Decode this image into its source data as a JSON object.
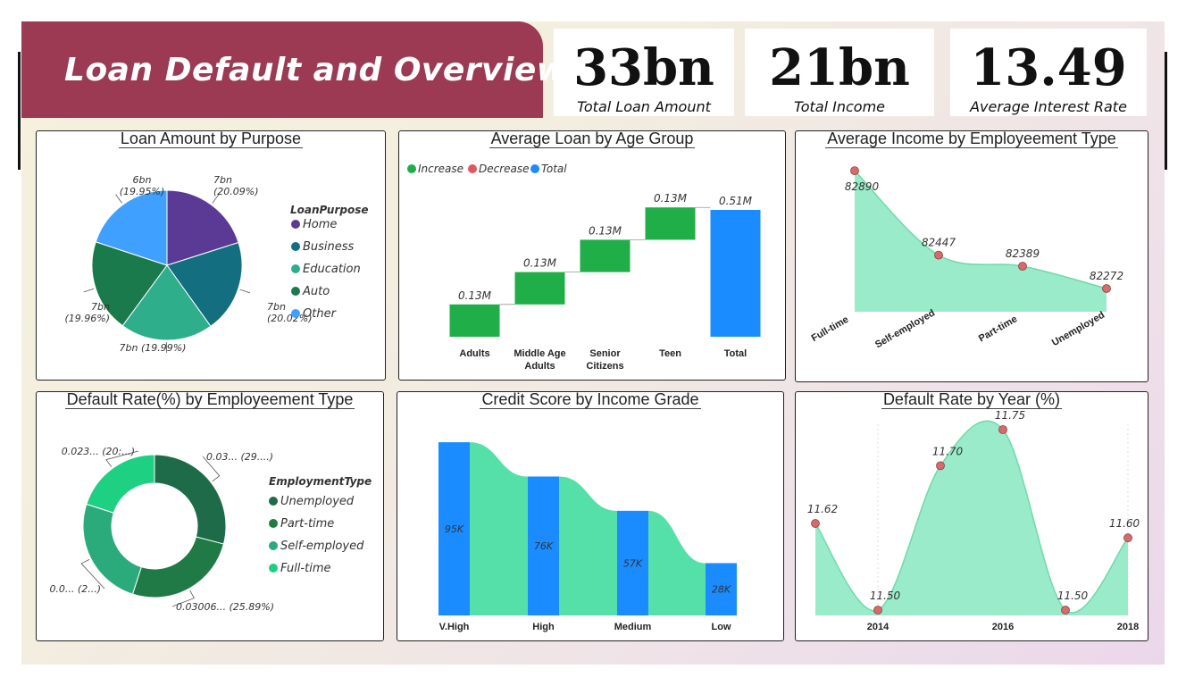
{
  "header": {
    "title": "Loan Default and Overview"
  },
  "kpis": [
    {
      "value": "33bn",
      "label": "Total Loan Amount"
    },
    {
      "value": "21bn",
      "label": "Total Income"
    },
    {
      "value": "13.49",
      "label": "Average Interest Rate"
    }
  ],
  "colors": {
    "banner": "#9b3a52",
    "increase": "#1fae48",
    "decrease": "#e0575e",
    "total": "#1a8cff",
    "area": "#8fe9c4",
    "marker": "#d86a6a"
  },
  "chart_data": [
    {
      "id": "loan_by_purpose",
      "type": "pie",
      "title": "Loan Amount by Purpose",
      "legend_title": "LoanPurpose",
      "legend_position": "right",
      "slices": [
        {
          "name": "Home",
          "value": 20.09,
          "label": "7bn\n(20.09%)",
          "color": "#5b3a96"
        },
        {
          "name": "Business",
          "value": 20.02,
          "label": "7bn\n(20.02%)",
          "color": "#136e7f"
        },
        {
          "name": "Education",
          "value": 19.99,
          "label": "7bn (19.99%)",
          "color": "#2fae8c"
        },
        {
          "name": "Auto",
          "value": 19.96,
          "label": "7bn\n(19.96%)",
          "color": "#1b7a4b"
        },
        {
          "name": "Other",
          "value": 19.95,
          "label": "6bn\n(19.95%)",
          "color": "#3fa0ff"
        }
      ]
    },
    {
      "id": "avg_loan_by_age",
      "type": "bar",
      "subtype": "waterfall",
      "title": "Average Loan by Age Group",
      "legend": [
        "Increase",
        "Decrease",
        "Total"
      ],
      "legend_position": "top-left",
      "categories": [
        "Adults",
        "Middle Age Adults",
        "Senior Citizens",
        "Teen",
        "Total"
      ],
      "values": [
        0.13,
        0.13,
        0.13,
        0.13,
        0.51
      ],
      "labels": [
        "0.13M",
        "0.13M",
        "0.13M",
        "0.13M",
        "0.51M"
      ],
      "kinds": [
        "increase",
        "increase",
        "increase",
        "increase",
        "total"
      ]
    },
    {
      "id": "income_by_employment",
      "type": "area",
      "title": "Average Income by Employeement Type",
      "categories": [
        "Full-time",
        "Self-employed",
        "Part-time",
        "Unemployed"
      ],
      "values": [
        82890,
        82447,
        82389,
        82272
      ],
      "ylim": [
        82150,
        82900
      ]
    },
    {
      "id": "default_rate_by_employment",
      "type": "pie",
      "subtype": "donut",
      "title": "Default Rate(%) by Employeement Type",
      "legend_title": "EmploymentType",
      "legend_position": "right",
      "slices": [
        {
          "name": "Unemployed",
          "value": 29,
          "label": "0.03... (29....)",
          "color": "#1e6b4a"
        },
        {
          "name": "Part-time",
          "value": 25.89,
          "label": "0.03006... (25.89%)",
          "color": "#1f7a45"
        },
        {
          "name": "Self-employed",
          "value": 25,
          "label": "0.0... (2...)",
          "color": "#2baa7c"
        },
        {
          "name": "Full-time",
          "value": 20,
          "label": "0.023... (20:...)",
          "color": "#1ed082"
        }
      ]
    },
    {
      "id": "credit_by_income_grade",
      "type": "bar",
      "title": "Credit Score by Income Grade",
      "categories": [
        "V.High",
        "High",
        "Medium",
        "Low"
      ],
      "values": [
        95,
        76,
        57,
        28
      ],
      "labels": [
        "95K",
        "76K",
        "57K",
        "28K"
      ],
      "ylim": [
        0,
        100
      ]
    },
    {
      "id": "default_rate_by_year",
      "type": "area",
      "title": "Default Rate by Year (%)",
      "x": [
        2013,
        2014,
        2015,
        2016,
        2017,
        2018
      ],
      "values": [
        11.62,
        11.5,
        11.7,
        11.75,
        11.5,
        11.6
      ],
      "labels": [
        "11.62",
        "11.50",
        "11.70",
        "11.75",
        "11.50",
        "11.60"
      ],
      "xticks": [
        "2014",
        "2016",
        "2018"
      ],
      "ylim": [
        11.5,
        11.75
      ]
    }
  ]
}
